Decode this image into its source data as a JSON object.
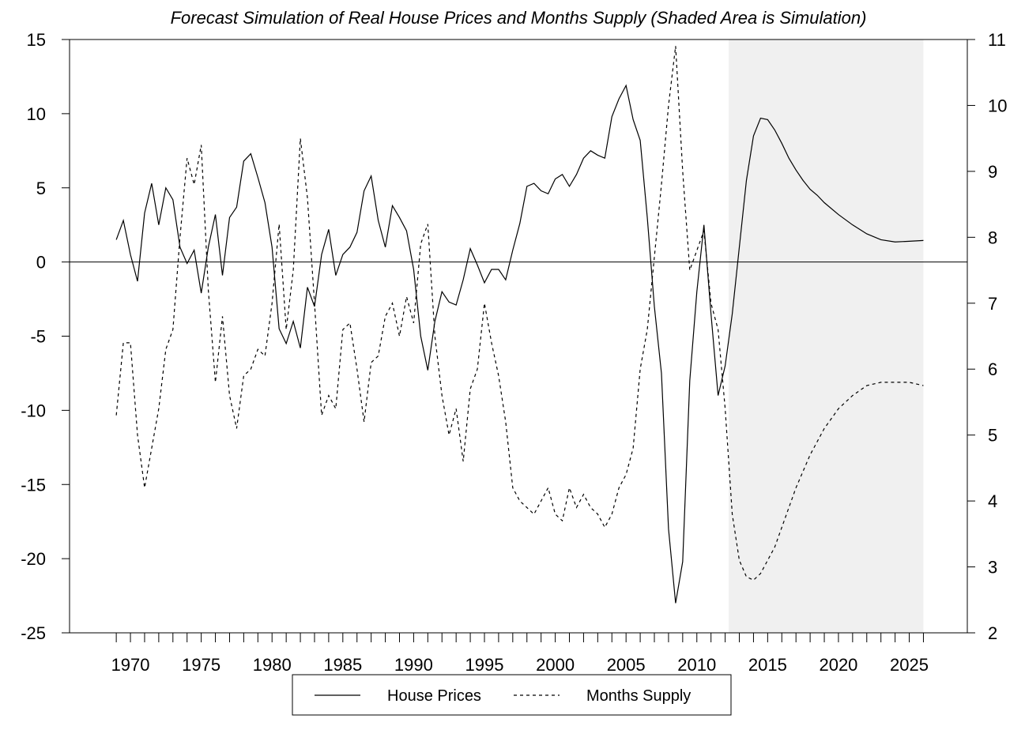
{
  "chart_data": {
    "type": "line",
    "title": "Forecast Simulation of Real House Prices and Months Supply (Shaded Area is Simulation)",
    "x": [
      1969,
      1969.5,
      1970,
      1970.5,
      1971,
      1971.5,
      1972,
      1972.5,
      1973,
      1973.5,
      1974,
      1974.5,
      1975,
      1975.5,
      1976,
      1976.5,
      1977,
      1977.5,
      1978,
      1978.5,
      1979,
      1979.5,
      1980,
      1980.5,
      1981,
      1981.5,
      1982,
      1982.5,
      1983,
      1983.5,
      1984,
      1984.5,
      1985,
      1985.5,
      1986,
      1986.5,
      1987,
      1987.5,
      1988,
      1988.5,
      1989,
      1989.5,
      1990,
      1990.5,
      1991,
      1991.5,
      1992,
      1992.5,
      1993,
      1993.5,
      1994,
      1994.5,
      1995,
      1995.5,
      1996,
      1996.5,
      1997,
      1997.5,
      1998,
      1998.5,
      1999,
      1999.5,
      2000,
      2000.5,
      2001,
      2001.5,
      2002,
      2002.5,
      2003,
      2003.5,
      2004,
      2004.5,
      2005,
      2005.5,
      2006,
      2006.5,
      2007,
      2007.5,
      2008,
      2008.5,
      2009,
      2009.5,
      2010,
      2010.5,
      2011,
      2011.5,
      2012,
      2012.5,
      2013,
      2013.5,
      2014,
      2014.5,
      2015,
      2015.5,
      2016,
      2016.5,
      2017,
      2017.5,
      2018,
      2018.5,
      2019,
      2020,
      2021,
      2022,
      2023,
      2024,
      2025,
      2026
    ],
    "series": [
      {
        "name": "House Prices",
        "color": "#000000",
        "dash": "none",
        "values": [
          1.5,
          2.8,
          0.5,
          -1.3,
          3.3,
          5.3,
          2.5,
          5.0,
          4.2,
          1.0,
          -0.1,
          0.8,
          -2.1,
          1.0,
          3.2,
          -0.9,
          3.0,
          3.7,
          6.8,
          7.3,
          5.7,
          4.0,
          1.0,
          -4.5,
          -5.5,
          -4.0,
          -5.8,
          -1.7,
          -3.0,
          0.5,
          2.2,
          -0.9,
          0.5,
          1.0,
          2.0,
          4.8,
          5.8,
          2.8,
          1.0,
          3.8,
          3.0,
          2.1,
          -0.5,
          -5.0,
          -7.3,
          -4.0,
          -2.0,
          -2.7,
          -2.9,
          -1.2,
          0.9,
          -0.2,
          -1.4,
          -0.5,
          -0.5,
          -1.2,
          0.8,
          2.6,
          5.1,
          5.3,
          4.8,
          4.6,
          5.6,
          5.9,
          5.1,
          5.9,
          7.0,
          7.5,
          7.2,
          7.0,
          9.8,
          11.0,
          11.9,
          9.6,
          8.2,
          3.0,
          -3.0,
          -7.5,
          -18.0,
          -23.0,
          -20.2,
          -8.0,
          -2.0,
          2.5,
          -3.5,
          -9.0,
          -7.0,
          -3.5,
          1.0,
          5.5,
          8.5,
          9.7,
          9.6,
          8.9,
          8.0,
          7.0,
          6.2,
          5.5,
          4.9,
          4.5,
          4.0,
          3.2,
          2.5,
          1.9,
          1.5,
          1.35,
          1.4,
          1.45
        ]
      },
      {
        "name": "Months Supply",
        "color": "#000000",
        "dash": "4 4",
        "axis": "y2",
        "values": [
          5.3,
          6.4,
          6.4,
          5.0,
          4.2,
          4.8,
          5.4,
          6.3,
          6.6,
          8.0,
          9.2,
          8.8,
          9.4,
          7.2,
          5.8,
          6.8,
          5.6,
          5.1,
          5.9,
          6.0,
          6.3,
          6.2,
          7.0,
          8.2,
          6.6,
          7.5,
          9.5,
          8.6,
          7.0,
          5.3,
          5.6,
          5.4,
          6.6,
          6.7,
          6.0,
          5.2,
          6.1,
          6.2,
          6.8,
          7.0,
          6.5,
          7.1,
          6.7,
          7.9,
          8.2,
          6.5,
          5.6,
          5.0,
          5.4,
          4.6,
          5.7,
          6.0,
          7.0,
          6.4,
          5.9,
          5.2,
          4.2,
          4.0,
          3.9,
          3.8,
          4.0,
          4.2,
          3.8,
          3.7,
          4.2,
          3.9,
          4.1,
          3.9,
          3.8,
          3.6,
          3.8,
          4.2,
          4.4,
          4.8,
          6.0,
          6.6,
          7.7,
          8.8,
          10.0,
          10.9,
          9.0,
          7.5,
          7.8,
          8.1,
          7.0,
          6.6,
          5.4,
          3.8,
          3.1,
          2.85,
          2.8,
          2.9,
          3.1,
          3.3,
          3.6,
          3.9,
          4.2,
          4.45,
          4.7,
          4.9,
          5.1,
          5.4,
          5.6,
          5.75,
          5.8,
          5.8,
          5.8,
          5.75
        ]
      }
    ],
    "xlim": [
      1965.7,
      2029.1
    ],
    "xticks": [
      1970,
      1975,
      1980,
      1985,
      1990,
      1995,
      2000,
      2005,
      2010,
      2015,
      2020,
      2025
    ],
    "xticks_minor": [
      1969,
      1970,
      1971,
      1972,
      1973,
      1974,
      1975,
      1976,
      1977,
      1978,
      1979,
      1980,
      1981,
      1982,
      1983,
      1984,
      1985,
      1986,
      1987,
      1988,
      1989,
      1990,
      1991,
      1992,
      1993,
      1994,
      1995,
      1996,
      1997,
      1998,
      1999,
      2000,
      2001,
      2002,
      2003,
      2004,
      2005,
      2006,
      2007,
      2008,
      2009,
      2010,
      2011,
      2012,
      2013,
      2014,
      2015,
      2016,
      2017,
      2018,
      2019,
      2020,
      2021,
      2022,
      2023,
      2024,
      2025,
      2026
    ],
    "ylim": [
      -25,
      15
    ],
    "yticks": [
      -25,
      -20,
      -15,
      -10,
      -5,
      0,
      5,
      10,
      15
    ],
    "y2lim": [
      2,
      11
    ],
    "y2ticks": [
      2,
      3,
      4,
      5,
      6,
      7,
      8,
      9,
      10,
      11
    ],
    "shade": [
      2012.25,
      2026
    ],
    "shade_color": "#f0f0f0",
    "zero_line": true
  }
}
